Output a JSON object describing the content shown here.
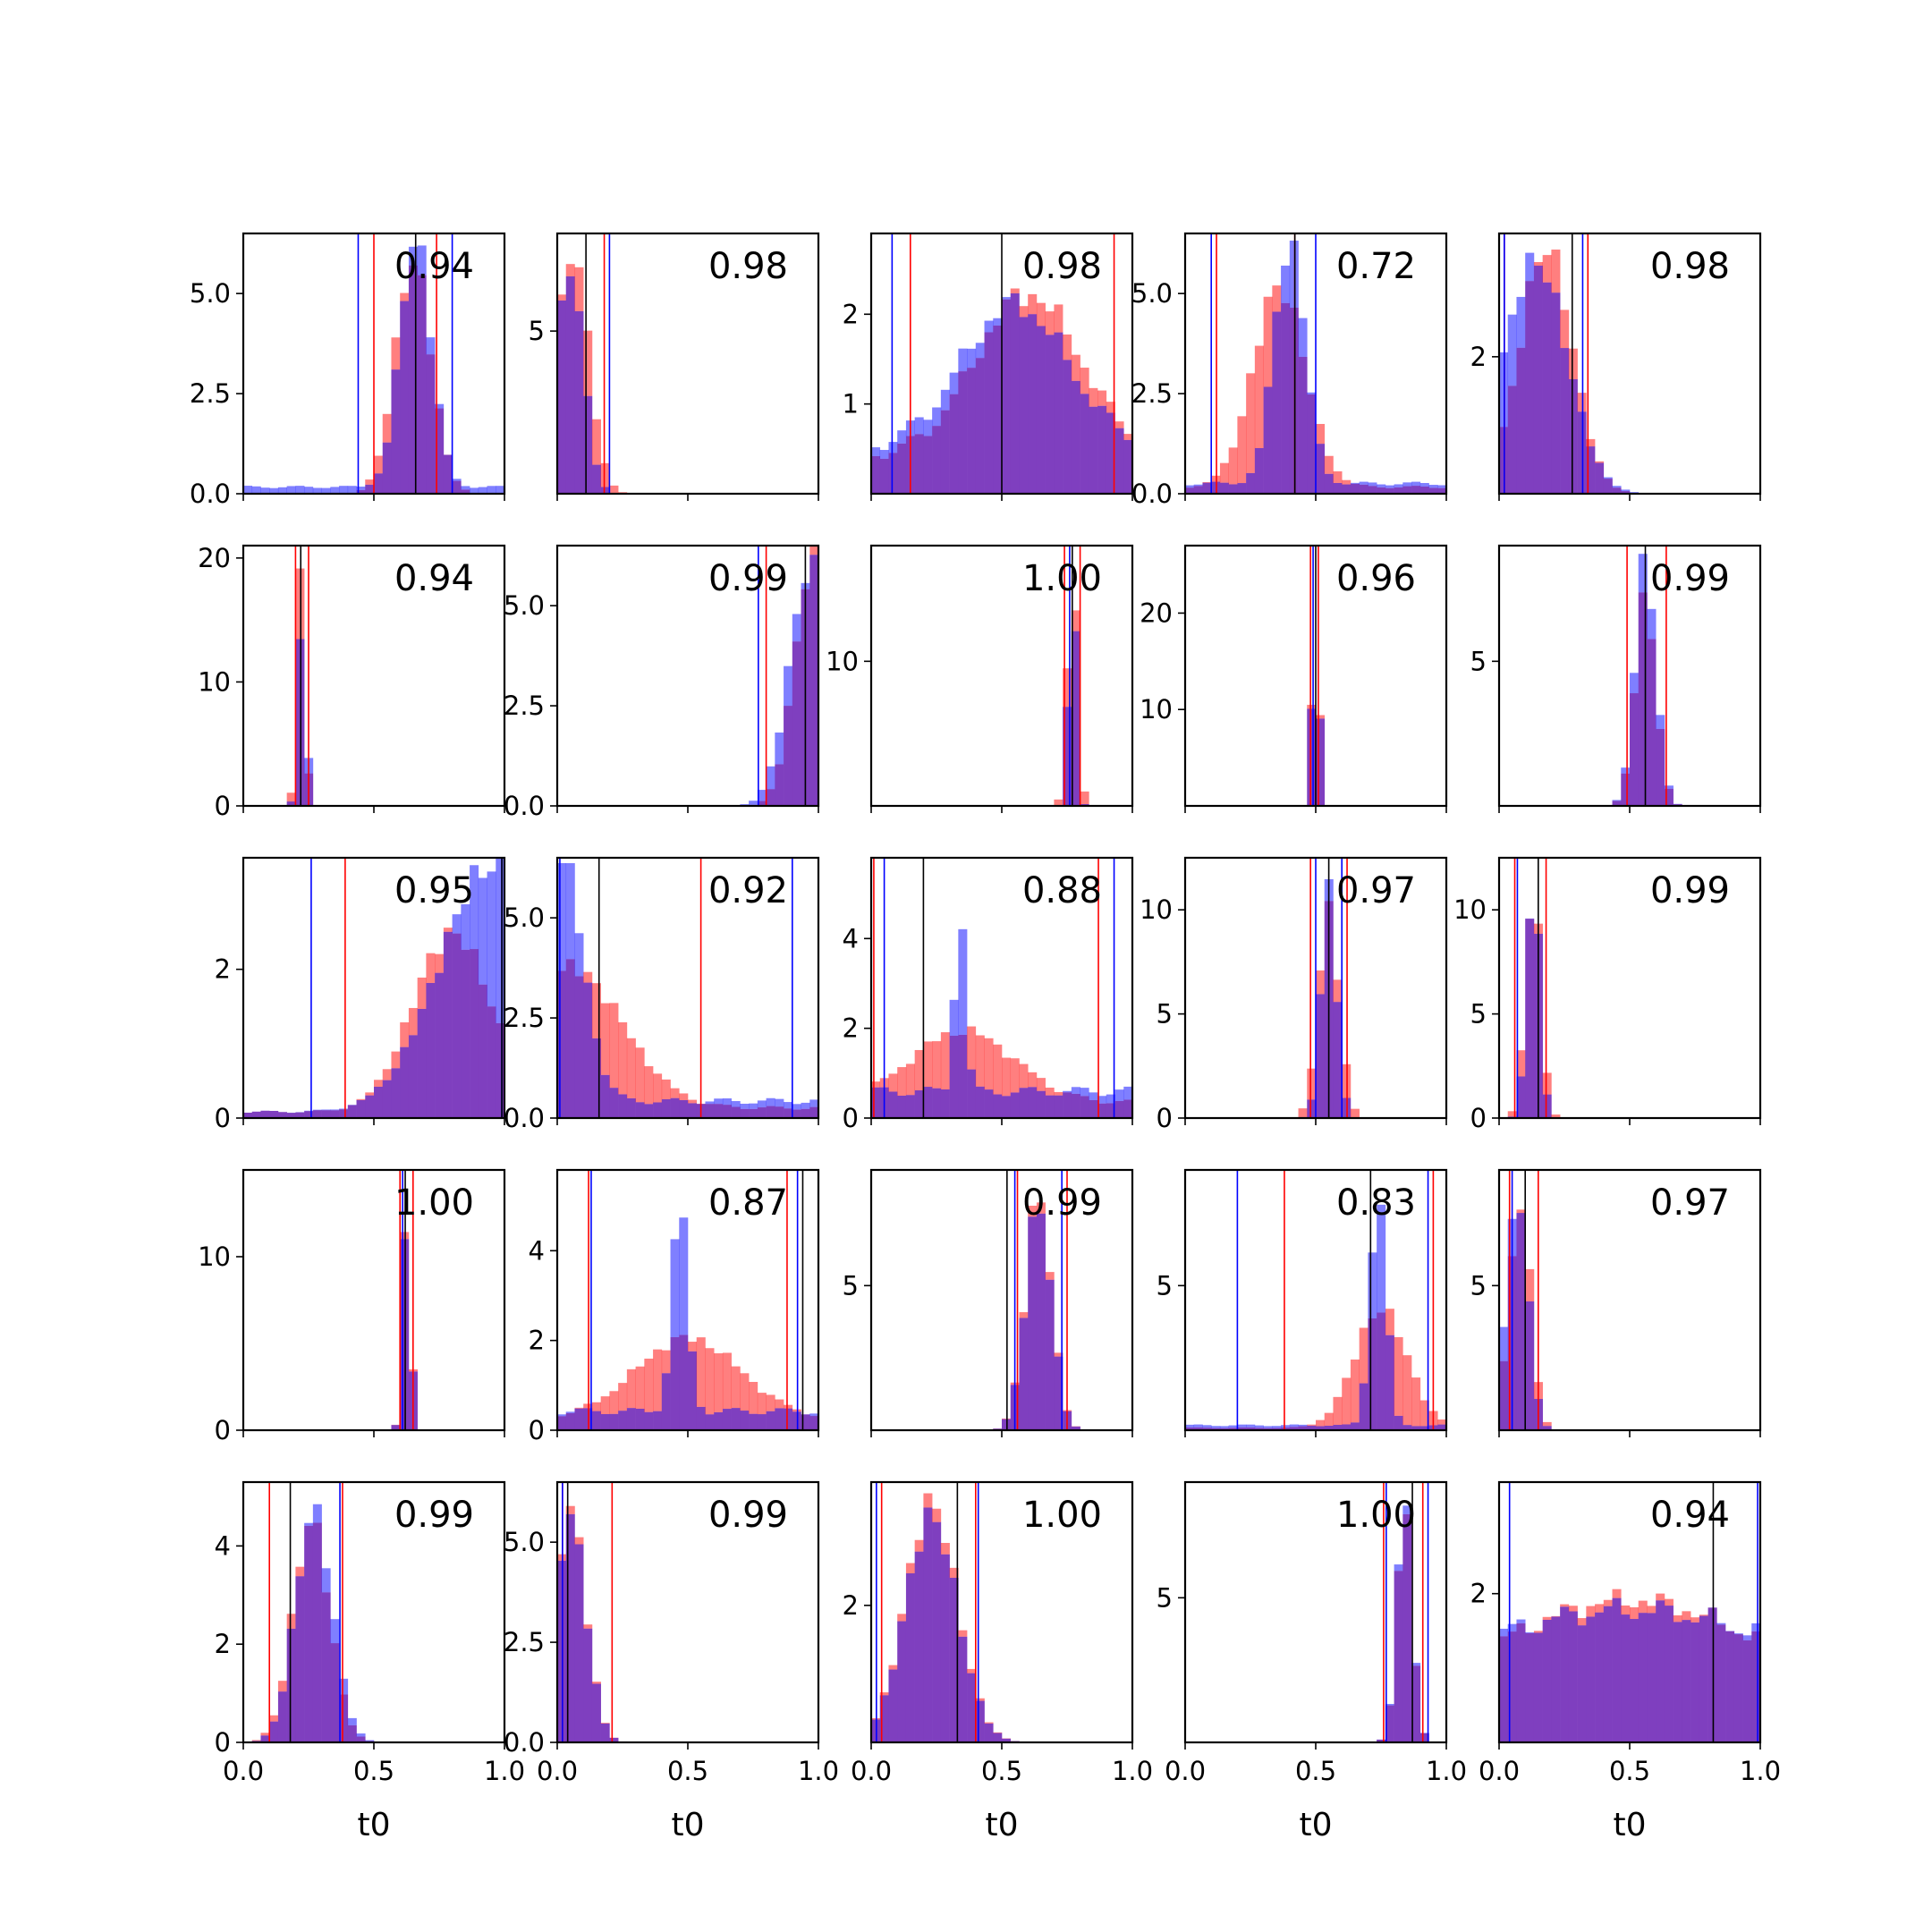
{
  "figure": {
    "rows": 5,
    "cols": 5,
    "bins": 30
  },
  "colors": {
    "series_a": "#ff0000",
    "series_b": "#0000ff",
    "overlap": "#7f3fbf",
    "true_line": "#000000"
  },
  "chart_data": [
    {
      "type": "histogram",
      "annotation": "0.94",
      "xlabel": "",
      "ylim": [
        0,
        6.5
      ],
      "yticks": [
        "0.0",
        "2.5",
        "5.0"
      ],
      "yticks_v": [
        0,
        2.5,
        5
      ],
      "xticks": [],
      "truth": 0.66,
      "red_lines": [
        0.5,
        0.74
      ],
      "blue_lines": [
        0.44,
        0.8
      ],
      "red": {
        "c": 0.65,
        "w": 0.07,
        "p": 5.8,
        "f": 0
      },
      "blue": {
        "c": 0.66,
        "w": 0.06,
        "p": 6.2,
        "f": 0.2
      }
    },
    {
      "type": "histogram",
      "annotation": "0.98",
      "xlabel": "",
      "ylim": [
        0,
        8
      ],
      "yticks": [
        "5"
      ],
      "yticks_v": [
        5
      ],
      "xticks": [],
      "truth": 0.11,
      "red_lines": [
        0.18
      ],
      "blue_lines": [
        0.2
      ],
      "red": {
        "c": 0.06,
        "w": 0.06,
        "p": 7.5,
        "f": 0
      },
      "blue": {
        "c": 0.05,
        "w": 0.05,
        "p": 7.0,
        "f": 0
      }
    },
    {
      "type": "histogram",
      "annotation": "0.98",
      "xlabel": "",
      "ylim": [
        0,
        2.9
      ],
      "yticks": [
        "1",
        "2"
      ],
      "yticks_v": [
        1,
        2
      ],
      "xticks": [],
      "truth": 0.5,
      "red_lines": [
        0.15,
        0.93
      ],
      "blue_lines": [
        0.08
      ],
      "red": {
        "c": 0.6,
        "w": 0.2,
        "p": 1.8,
        "f": 0.5
      },
      "blue": {
        "c": 0.55,
        "w": 0.2,
        "p": 1.6,
        "f": 0.6
      }
    },
    {
      "type": "histogram",
      "annotation": "0.72",
      "xlabel": "",
      "ylim": [
        0,
        6.5
      ],
      "yticks": [
        "0.0",
        "2.5",
        "5.0"
      ],
      "yticks_v": [
        0,
        2.5,
        5
      ],
      "xticks": [],
      "truth": 0.42,
      "red_lines": [
        0.12,
        0.42
      ],
      "blue_lines": [
        0.1,
        0.5
      ],
      "red": {
        "c": 0.36,
        "w": 0.1,
        "p": 5.0,
        "f": 0.2
      },
      "blue": {
        "c": 0.4,
        "w": 0.06,
        "p": 6.0,
        "f": 0.3
      }
    },
    {
      "type": "histogram",
      "annotation": "0.98",
      "xlabel": "",
      "ylim": [
        0,
        3.8
      ],
      "yticks": [
        "2"
      ],
      "yticks_v": [
        2
      ],
      "xticks": [],
      "truth": 0.28,
      "red_lines": [
        0.02,
        0.34
      ],
      "blue_lines": [
        0.02,
        0.32
      ],
      "red": {
        "c": 0.18,
        "w": 0.1,
        "p": 3.6,
        "f": 0
      },
      "blue": {
        "c": 0.14,
        "w": 0.12,
        "p": 3.4,
        "f": 0
      }
    },
    {
      "type": "histogram",
      "annotation": "0.94",
      "xlabel": "",
      "ylim": [
        0,
        21
      ],
      "yticks": [
        "0",
        "10",
        "20"
      ],
      "yticks_v": [
        0,
        10,
        20
      ],
      "xticks": [],
      "truth": 0.22,
      "red_lines": [
        0.2,
        0.25
      ],
      "blue_lines": [],
      "red": {
        "c": 0.22,
        "w": 0.015,
        "p": 20,
        "f": 0
      },
      "blue": {
        "c": 0.225,
        "w": 0.015,
        "p": 16,
        "f": 0
      }
    },
    {
      "type": "histogram",
      "annotation": "0.99",
      "xlabel": "",
      "ylim": [
        0,
        6.5
      ],
      "yticks": [
        "0.0",
        "2.5",
        "5.0"
      ],
      "yticks_v": [
        0,
        2.5,
        5
      ],
      "xticks": [],
      "truth": 0.95,
      "red_lines": [
        0.8
      ],
      "blue_lines": [
        0.77
      ],
      "red": {
        "c": 0.98,
        "w": 0.07,
        "p": 6.2,
        "f": 0
      },
      "blue": {
        "c": 0.97,
        "w": 0.08,
        "p": 6.0,
        "f": 0
      }
    },
    {
      "type": "histogram",
      "annotation": "1.00",
      "xlabel": "",
      "ylim": [
        0,
        18
      ],
      "yticks": [
        "10"
      ],
      "yticks_v": [
        10
      ],
      "xticks": [],
      "truth": 0.77,
      "red_lines": [
        0.74,
        0.8
      ],
      "blue_lines": [
        0.76
      ],
      "red": {
        "c": 0.77,
        "w": 0.02,
        "p": 16,
        "f": 0
      },
      "blue": {
        "c": 0.77,
        "w": 0.015,
        "p": 17,
        "f": 0
      }
    },
    {
      "type": "histogram",
      "annotation": "0.96",
      "xlabel": "",
      "ylim": [
        0,
        27
      ],
      "yticks": [
        "10",
        "20"
      ],
      "yticks_v": [
        10,
        20
      ],
      "xticks": [],
      "truth": 0.5,
      "red_lines": [
        0.48,
        0.51
      ],
      "blue_lines": [
        0.49
      ],
      "red": {
        "c": 0.5,
        "w": 0.012,
        "p": 26,
        "f": 0
      },
      "blue": {
        "c": 0.5,
        "w": 0.012,
        "p": 25,
        "f": 0
      }
    },
    {
      "type": "histogram",
      "annotation": "0.99",
      "xlabel": "",
      "ylim": [
        0,
        9
      ],
      "yticks": [
        "5"
      ],
      "yticks_v": [
        5
      ],
      "xticks": [],
      "truth": 0.56,
      "red_lines": [
        0.49,
        0.64
      ],
      "blue_lines": [],
      "red": {
        "c": 0.56,
        "w": 0.04,
        "p": 7.2,
        "f": 0
      },
      "blue": {
        "c": 0.56,
        "w": 0.04,
        "p": 8.5,
        "f": 0
      }
    },
    {
      "type": "histogram",
      "annotation": "0.95",
      "xlabel": "",
      "ylim": [
        0,
        3.5
      ],
      "yticks": [
        "0",
        "2"
      ],
      "yticks_v": [
        0,
        2
      ],
      "xticks": [],
      "truth": 0.99,
      "red_lines": [
        0.39
      ],
      "blue_lines": [
        0.26,
        0.99
      ],
      "red": {
        "c": 0.8,
        "w": 0.15,
        "p": 2.4,
        "f": 0.1
      },
      "blue": {
        "c": 0.95,
        "w": 0.2,
        "p": 3.3,
        "f": 0.1
      }
    },
    {
      "type": "histogram",
      "annotation": "0.92",
      "xlabel": "",
      "ylim": [
        0,
        6.5
      ],
      "yticks": [
        "0.0",
        "2.5",
        "5.0"
      ],
      "yticks_v": [
        0,
        2.5,
        5
      ],
      "xticks": [],
      "truth": 0.16,
      "red_lines": [
        0.55
      ],
      "blue_lines": [
        0.01,
        0.9
      ],
      "red": {
        "c": 0.05,
        "w": 0.2,
        "p": 3.5,
        "f": 0.3
      },
      "blue": {
        "c": 0.02,
        "w": 0.08,
        "p": 6.0,
        "f": 0.5
      }
    },
    {
      "type": "histogram",
      "annotation": "0.88",
      "xlabel": "",
      "ylim": [
        0,
        5.8
      ],
      "yticks": [
        "0",
        "2",
        "4"
      ],
      "yticks_v": [
        0,
        2,
        4
      ],
      "xticks": [],
      "truth": 0.2,
      "red_lines": [
        0.01,
        0.87
      ],
      "blue_lines": [
        0.05,
        0.93
      ],
      "red": {
        "c": 0.35,
        "w": 0.2,
        "p": 1.6,
        "f": 0.4
      },
      "blue": {
        "c": 0.34,
        "w": 0.02,
        "p": 4.3,
        "f": 0.7
      }
    },
    {
      "type": "histogram",
      "annotation": "0.97",
      "xlabel": "",
      "ylim": [
        0,
        12.5
      ],
      "yticks": [
        "0",
        "5",
        "10"
      ],
      "yticks_v": [
        0,
        5,
        10
      ],
      "xticks": [],
      "truth": 0.55,
      "red_lines": [
        0.48,
        0.62
      ],
      "blue_lines": [
        0.5,
        0.6
      ],
      "red": {
        "c": 0.55,
        "w": 0.04,
        "p": 10,
        "f": 0
      },
      "blue": {
        "c": 0.55,
        "w": 0.03,
        "p": 11,
        "f": 0
      }
    },
    {
      "type": "histogram",
      "annotation": "0.99",
      "xlabel": "",
      "ylim": [
        0,
        12.5
      ],
      "yticks": [
        "0",
        "5",
        "10"
      ],
      "yticks_v": [
        0,
        5,
        10
      ],
      "xticks": [],
      "truth": 0.15,
      "red_lines": [
        0.06,
        0.18
      ],
      "blue_lines": [
        0.07
      ],
      "red": {
        "c": 0.13,
        "w": 0.03,
        "p": 11,
        "f": 0
      },
      "blue": {
        "c": 0.13,
        "w": 0.025,
        "p": 11.5,
        "f": 0
      }
    },
    {
      "type": "histogram",
      "annotation": "1.00",
      "xlabel": "",
      "ylim": [
        0,
        15
      ],
      "yticks": [
        "0",
        "10"
      ],
      "yticks_v": [
        0,
        10
      ],
      "xticks": [],
      "truth": 0.62,
      "red_lines": [
        0.6,
        0.65
      ],
      "blue_lines": [
        0.61
      ],
      "red": {
        "c": 0.625,
        "w": 0.015,
        "p": 14,
        "f": 0
      },
      "blue": {
        "c": 0.625,
        "w": 0.015,
        "p": 13.5,
        "f": 0
      }
    },
    {
      "type": "histogram",
      "annotation": "0.87",
      "xlabel": "",
      "ylim": [
        0,
        5.8
      ],
      "yticks": [
        "0",
        "2",
        "4"
      ],
      "yticks_v": [
        0,
        2,
        4
      ],
      "xticks": [],
      "truth": 0.94,
      "red_lines": [
        0.12,
        0.88
      ],
      "blue_lines": [
        0.13,
        0.92
      ],
      "red": {
        "c": 0.5,
        "w": 0.2,
        "p": 1.8,
        "f": 0.3
      },
      "blue": {
        "c": 0.47,
        "w": 0.03,
        "p": 4.6,
        "f": 0.5
      }
    },
    {
      "type": "histogram",
      "annotation": "0.99",
      "xlabel": "",
      "ylim": [
        0,
        9
      ],
      "yticks": [
        "5"
      ],
      "yticks_v": [
        5
      ],
      "xticks": [],
      "truth": 0.52,
      "red_lines": [
        0.56,
        0.75
      ],
      "blue_lines": [
        0.55,
        0.73
      ],
      "red": {
        "c": 0.64,
        "w": 0.05,
        "p": 8.2,
        "f": 0
      },
      "blue": {
        "c": 0.64,
        "w": 0.05,
        "p": 7.8,
        "f": 0
      }
    },
    {
      "type": "histogram",
      "annotation": "0.83",
      "xlabel": "",
      "ylim": [
        0,
        9
      ],
      "yticks": [
        "5"
      ],
      "yticks_v": [
        5
      ],
      "xticks": [],
      "truth": 0.71,
      "red_lines": [
        0.38,
        0.95
      ],
      "blue_lines": [
        0.2,
        0.93
      ],
      "red": {
        "c": 0.75,
        "w": 0.1,
        "p": 4.1,
        "f": 0.1
      },
      "blue": {
        "c": 0.74,
        "w": 0.03,
        "p": 8.3,
        "f": 0.2
      }
    },
    {
      "type": "histogram",
      "annotation": "0.97",
      "xlabel": "",
      "ylim": [
        0,
        9
      ],
      "yticks": [
        "5"
      ],
      "yticks_v": [
        5
      ],
      "xticks": [],
      "truth": 0.1,
      "red_lines": [
        0.04,
        0.15
      ],
      "blue_lines": [
        0.05
      ],
      "red": {
        "c": 0.08,
        "w": 0.04,
        "p": 8.0,
        "f": 0
      },
      "blue": {
        "c": 0.07,
        "w": 0.04,
        "p": 8.3,
        "f": 0
      }
    },
    {
      "type": "histogram",
      "annotation": "0.99",
      "xlabel": "t0",
      "ylim": [
        0,
        5.3
      ],
      "yticks": [
        "0",
        "2",
        "4"
      ],
      "yticks_v": [
        0,
        2,
        4
      ],
      "xticks": [
        "0.0",
        "0.5",
        "1.0"
      ],
      "xticks_v": [
        0,
        0.5,
        1
      ],
      "truth": 0.18,
      "red_lines": [
        0.1,
        0.38
      ],
      "blue_lines": [
        0.37
      ],
      "red": {
        "c": 0.26,
        "w": 0.07,
        "p": 4.5,
        "f": 0
      },
      "blue": {
        "c": 0.27,
        "w": 0.07,
        "p": 4.7,
        "f": 0
      }
    },
    {
      "type": "histogram",
      "annotation": "0.99",
      "xlabel": "t0",
      "ylim": [
        0,
        6.5
      ],
      "yticks": [
        "0.0",
        "2.5",
        "5.0"
      ],
      "yticks_v": [
        0,
        2.5,
        5
      ],
      "xticks": [
        "0.0",
        "0.5",
        "1.0"
      ],
      "xticks_v": [
        0,
        0.5,
        1
      ],
      "truth": 0.04,
      "red_lines": [
        0.02,
        0.21
      ],
      "blue_lines": [
        0.02
      ],
      "red": {
        "c": 0.05,
        "w": 0.06,
        "p": 5.8,
        "f": 0
      },
      "blue": {
        "c": 0.05,
        "w": 0.06,
        "p": 5.6,
        "f": 0
      }
    },
    {
      "type": "histogram",
      "annotation": "1.00",
      "xlabel": "t0",
      "ylim": [
        0,
        3.8
      ],
      "yticks": [
        "2"
      ],
      "yticks_v": [
        2
      ],
      "xticks": [
        "0.0",
        "0.5",
        "1.0"
      ],
      "xticks_v": [
        0,
        0.5,
        1
      ],
      "truth": 0.33,
      "red_lines": [
        0.04,
        0.4
      ],
      "blue_lines": [
        0.02,
        0.41
      ],
      "red": {
        "c": 0.23,
        "w": 0.1,
        "p": 3.5,
        "f": 0
      },
      "blue": {
        "c": 0.23,
        "w": 0.1,
        "p": 3.3,
        "f": 0
      }
    },
    {
      "type": "histogram",
      "annotation": "1.00",
      "xlabel": "t0",
      "ylim": [
        0,
        9
      ],
      "yticks": [
        "5"
      ],
      "yticks_v": [
        5
      ],
      "xticks": [
        "0.0",
        "0.5",
        "1.0"
      ],
      "xticks_v": [
        0,
        0.5,
        1
      ],
      "truth": 0.87,
      "red_lines": [
        0.76,
        0.91
      ],
      "blue_lines": [
        0.77,
        0.93
      ],
      "red": {
        "c": 0.84,
        "w": 0.03,
        "p": 8.0,
        "f": 0
      },
      "blue": {
        "c": 0.84,
        "w": 0.03,
        "p": 8.3,
        "f": 0
      }
    },
    {
      "type": "histogram",
      "annotation": "0.94",
      "xlabel": "t0",
      "ylim": [
        0,
        3.5
      ],
      "yticks": [
        "2"
      ],
      "yticks_v": [
        2
      ],
      "xticks": [
        "0.0",
        "0.5",
        "1.0"
      ],
      "xticks_v": [
        0,
        0.5,
        1
      ],
      "truth": 0.82,
      "red_lines": [],
      "blue_lines": [
        0.04,
        0.99
      ],
      "red": {
        "c": 0.5,
        "w": 0.5,
        "p": 1.4,
        "f": 0.6
      },
      "blue": {
        "c": 0.5,
        "w": 0.6,
        "p": 1.1,
        "f": 0.8
      }
    }
  ]
}
